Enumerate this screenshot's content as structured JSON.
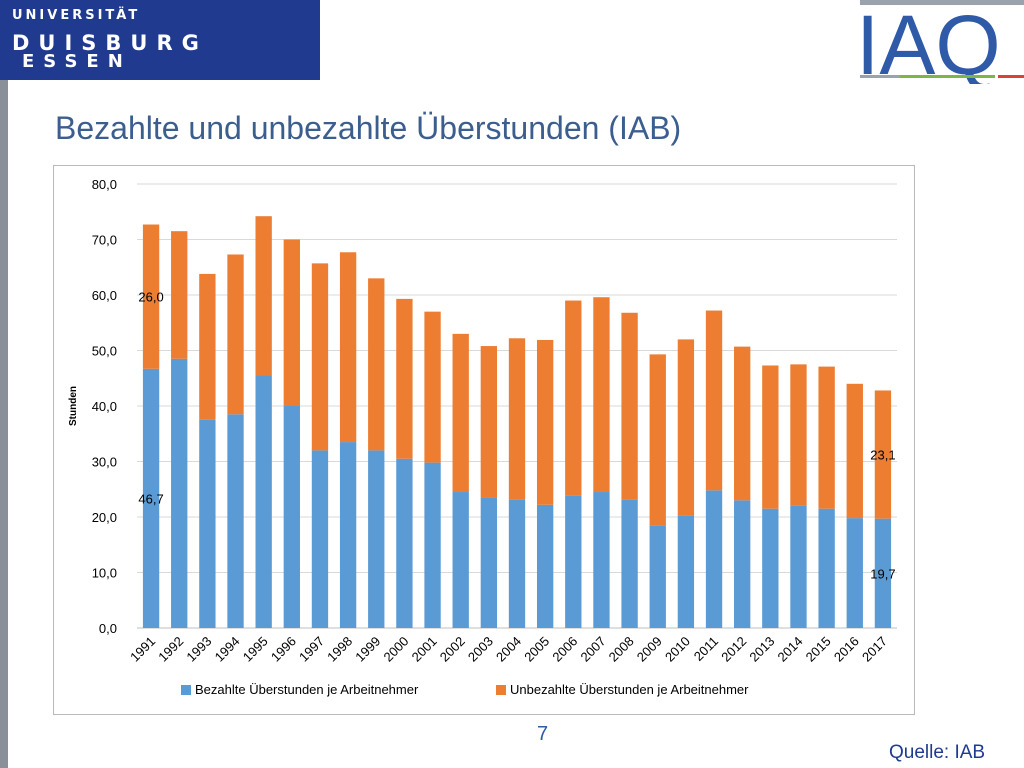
{
  "header": {
    "university_line1": "UNIVERSITÄT",
    "university_line2": "DUISBURG",
    "university_line3": "ESSEN",
    "institute_logo_text": "IAQ"
  },
  "slide": {
    "title": "Bezahlte und unbezahlte Überstunden (IAB)",
    "page_number": "7",
    "source": "Quelle: IAB"
  },
  "colors": {
    "paid": "#5b9bd5",
    "unpaid": "#ed7d31",
    "title": "#3b5e8f",
    "ude_blue": "#1f3a8f",
    "iaq_blue": "#2e5aa8"
  },
  "chart_data": {
    "type": "bar",
    "stacked": true,
    "ylabel": "Stunden",
    "xlabel": "",
    "ylim": [
      0,
      80
    ],
    "y_ticks": [
      "0,0",
      "10,0",
      "20,0",
      "30,0",
      "40,0",
      "50,0",
      "60,0",
      "70,0",
      "80,0"
    ],
    "grid": true,
    "legend_position": "bottom",
    "categories": [
      "1991",
      "1992",
      "1993",
      "1994",
      "1995",
      "1996",
      "1997",
      "1998",
      "1999",
      "2000",
      "2001",
      "2002",
      "2003",
      "2004",
      "2005",
      "2006",
      "2007",
      "2008",
      "2009",
      "2010",
      "2011",
      "2012",
      "2013",
      "2014",
      "2015",
      "2016",
      "2017"
    ],
    "series": [
      {
        "name": "Bezahlte Überstunden je Arbeitnehmer",
        "values": [
          46.7,
          48.5,
          37.5,
          38.5,
          45.5,
          40.0,
          32.0,
          33.5,
          32.0,
          30.5,
          29.8,
          24.5,
          23.5,
          23.2,
          22.2,
          23.8,
          24.5,
          23.2,
          18.5,
          20.3,
          24.8,
          23.0,
          21.5,
          22.0,
          21.5,
          19.8,
          19.7
        ]
      },
      {
        "name": "Unbezahlte Überstunden je Arbeitnehmer",
        "values": [
          26.0,
          23.0,
          26.3,
          28.8,
          28.7,
          30.0,
          33.7,
          34.2,
          31.0,
          28.8,
          27.2,
          28.5,
          27.3,
          29.0,
          29.7,
          35.2,
          35.1,
          33.6,
          30.8,
          31.7,
          32.4,
          27.7,
          25.8,
          25.5,
          25.6,
          24.2,
          23.1
        ]
      }
    ],
    "data_labels": [
      {
        "text": "46,7",
        "series": 0,
        "index": 0
      },
      {
        "text": "26,0",
        "series": 1,
        "index": 0
      },
      {
        "text": "19,7",
        "series": 0,
        "index": 26
      },
      {
        "text": "23,1",
        "series": 1,
        "index": 26
      }
    ]
  }
}
